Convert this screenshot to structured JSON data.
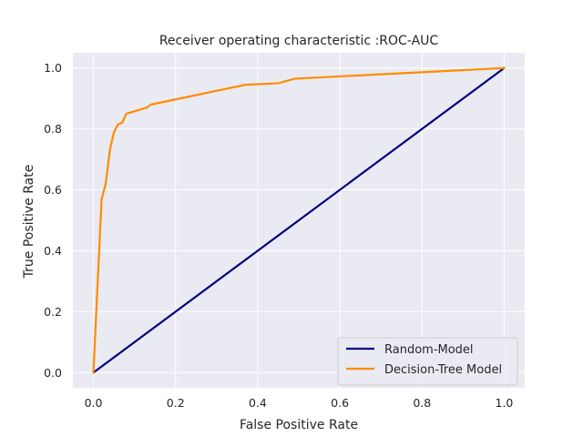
{
  "chart_data": {
    "type": "line",
    "title": "Receiver operating characteristic :ROC-AUC",
    "xlabel": "False Positive Rate",
    "ylabel": "True Positive Rate",
    "xlim": [
      -0.05,
      1.05
    ],
    "ylim": [
      -0.05,
      1.05
    ],
    "xticks": [
      "0.0",
      "0.2",
      "0.4",
      "0.6",
      "0.8",
      "1.0"
    ],
    "yticks": [
      "0.0",
      "0.2",
      "0.4",
      "0.6",
      "0.8",
      "1.0"
    ],
    "grid": true,
    "legend_position": "bottom-right",
    "background_color": "#eaeaf2",
    "series": [
      {
        "name": "Random-Model",
        "color": "#000080",
        "points": [
          [
            0.0,
            0.0
          ],
          [
            1.0,
            1.0
          ]
        ]
      },
      {
        "name": "Decision-Tree Model",
        "color": "#ff8c00",
        "points": [
          [
            0.0,
            0.0
          ],
          [
            0.02,
            0.57
          ],
          [
            0.03,
            0.62
          ],
          [
            0.04,
            0.73
          ],
          [
            0.05,
            0.79
          ],
          [
            0.06,
            0.815
          ],
          [
            0.07,
            0.82
          ],
          [
            0.08,
            0.85
          ],
          [
            0.13,
            0.87
          ],
          [
            0.14,
            0.88
          ],
          [
            0.37,
            0.945
          ],
          [
            0.45,
            0.95
          ],
          [
            0.49,
            0.965
          ],
          [
            1.0,
            1.0
          ]
        ]
      }
    ]
  }
}
